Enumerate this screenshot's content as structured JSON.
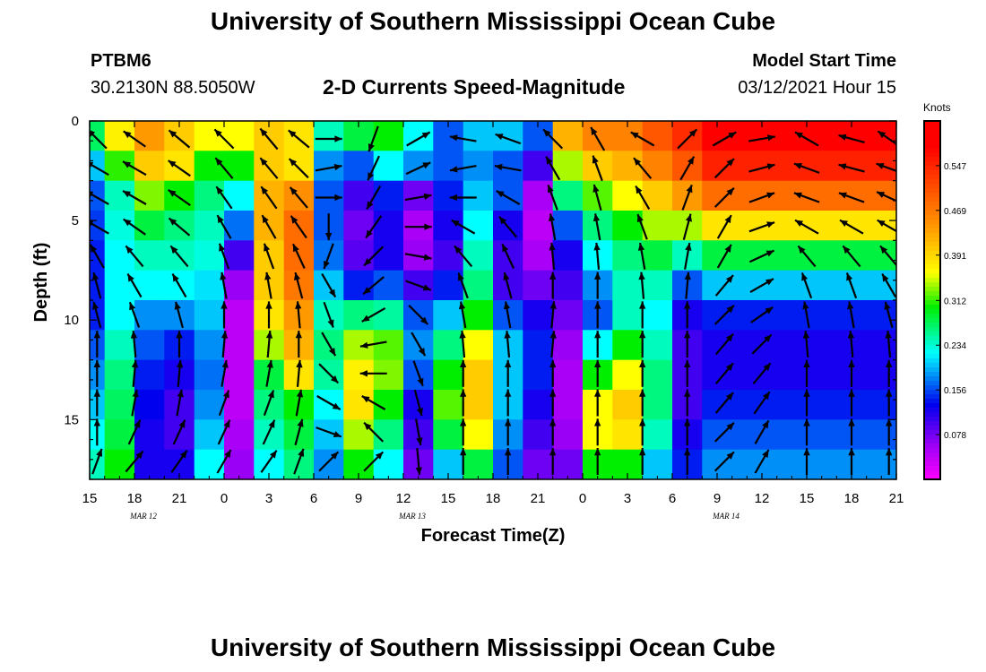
{
  "page": {
    "title_top": "University of Southern Mississippi Ocean Cube",
    "title_bottom": "University of Southern Mississippi Ocean Cube",
    "station_id": "PTBM6",
    "coordinates": "30.2130N 88.5050W",
    "model_start_label": "Model Start Time",
    "model_start_value": "03/12/2021 Hour 15"
  },
  "colors": {
    "magenta": "#ff00ff",
    "purple": "#9a00f5",
    "blue": "#0000ee",
    "cyan": "#00ffff",
    "green": "#00ee00",
    "yellow": "#ffff00",
    "orange": "#ff9900",
    "red": "#ff0000",
    "arrow": "#000000"
  },
  "chart_data": {
    "type": "heatmap",
    "title": "2-D Currents Speed-Magnitude",
    "xlabel": "Forecast Time(Z)",
    "ylabel": "Depth (ft)",
    "x_tick_labels": [
      "15",
      "18",
      "21",
      "0",
      "3",
      "6",
      "9",
      "12",
      "15",
      "18",
      "21",
      "0",
      "3",
      "6",
      "9",
      "12",
      "15",
      "18",
      "21"
    ],
    "date_labels": [
      {
        "text": "MAR 12",
        "tick_index": 1
      },
      {
        "text": "MAR 13",
        "tick_index": 7
      },
      {
        "text": "MAR 14",
        "tick_index": 14
      }
    ],
    "y_ticks": [
      0,
      5,
      10,
      15
    ],
    "ylim": [
      0,
      18
    ],
    "x_range_hours": [
      0,
      54
    ],
    "colorbar": {
      "unit": "Knots",
      "ticks": [
        "0.547",
        "0.469",
        "0.391",
        "0.312",
        "0.234",
        "0.156",
        "0.078"
      ],
      "range": [
        0,
        0.625
      ]
    },
    "speed_profiles": [
      {
        "hour": 0,
        "speeds": [
          0.27,
          0.2,
          0.16,
          0.15,
          0.14,
          0.14,
          0.14,
          0.16,
          0.18,
          0.2,
          0.22,
          0.24
        ]
      },
      {
        "hour": 2,
        "speeds": [
          0.37,
          0.31,
          0.24,
          0.23,
          0.22,
          0.22,
          0.22,
          0.24,
          0.26,
          0.27,
          0.28,
          0.3
        ]
      },
      {
        "hour": 4,
        "speeds": [
          0.44,
          0.4,
          0.33,
          0.28,
          0.24,
          0.22,
          0.18,
          0.16,
          0.14,
          0.13,
          0.12,
          0.12
        ]
      },
      {
        "hour": 6,
        "speeds": [
          0.4,
          0.38,
          0.3,
          0.26,
          0.24,
          0.22,
          0.18,
          0.14,
          0.12,
          0.1,
          0.1,
          0.12
        ]
      },
      {
        "hour": 8,
        "speeds": [
          0.36,
          0.3,
          0.26,
          0.24,
          0.23,
          0.21,
          0.2,
          0.18,
          0.17,
          0.18,
          0.2,
          0.22
        ]
      },
      {
        "hour": 10,
        "speeds": [
          0.36,
          0.3,
          0.22,
          0.17,
          0.1,
          0.06,
          0.04,
          0.04,
          0.04,
          0.04,
          0.05,
          0.06
        ]
      },
      {
        "hour": 12,
        "speeds": [
          0.4,
          0.4,
          0.42,
          0.42,
          0.4,
          0.4,
          0.38,
          0.34,
          0.28,
          0.26,
          0.24,
          0.22
        ]
      },
      {
        "hour": 14,
        "speeds": [
          0.38,
          0.38,
          0.45,
          0.48,
          0.48,
          0.47,
          0.44,
          0.42,
          0.38,
          0.3,
          0.28,
          0.26
        ]
      },
      {
        "hour": 16,
        "speeds": [
          0.24,
          0.18,
          0.16,
          0.16,
          0.17,
          0.2,
          0.24,
          0.26,
          0.25,
          0.22,
          0.2,
          0.18
        ]
      },
      {
        "hour": 18,
        "speeds": [
          0.28,
          0.16,
          0.1,
          0.08,
          0.09,
          0.14,
          0.26,
          0.34,
          0.37,
          0.38,
          0.34,
          0.3
        ]
      },
      {
        "hour": 20,
        "speeds": [
          0.3,
          0.22,
          0.14,
          0.12,
          0.12,
          0.16,
          0.25,
          0.32,
          0.33,
          0.3,
          0.26,
          0.22
        ]
      },
      {
        "hour": 22,
        "speeds": [
          0.22,
          0.18,
          0.08,
          0.05,
          0.06,
          0.1,
          0.16,
          0.18,
          0.16,
          0.12,
          0.1,
          0.08
        ]
      },
      {
        "hour": 24,
        "speeds": [
          0.16,
          0.16,
          0.14,
          0.12,
          0.1,
          0.14,
          0.2,
          0.26,
          0.3,
          0.32,
          0.28,
          0.2
        ]
      },
      {
        "hour": 26,
        "speeds": [
          0.2,
          0.18,
          0.2,
          0.22,
          0.24,
          0.26,
          0.3,
          0.36,
          0.4,
          0.4,
          0.36,
          0.28
        ]
      },
      {
        "hour": 28,
        "speeds": [
          0.2,
          0.16,
          0.16,
          0.12,
          0.1,
          0.1,
          0.16,
          0.2,
          0.2,
          0.2,
          0.18,
          0.16
        ]
      },
      {
        "hour": 30,
        "speeds": [
          0.16,
          0.1,
          0.05,
          0.04,
          0.05,
          0.08,
          0.12,
          0.14,
          0.14,
          0.12,
          0.1,
          0.08
        ]
      },
      {
        "hour": 32,
        "speeds": [
          0.42,
          0.34,
          0.26,
          0.16,
          0.12,
          0.1,
          0.08,
          0.06,
          0.05,
          0.05,
          0.06,
          0.08
        ]
      },
      {
        "hour": 34,
        "speeds": [
          0.46,
          0.4,
          0.32,
          0.26,
          0.22,
          0.18,
          0.16,
          0.22,
          0.3,
          0.36,
          0.36,
          0.3
        ]
      },
      {
        "hour": 36,
        "speeds": [
          0.46,
          0.42,
          0.36,
          0.3,
          0.26,
          0.24,
          0.24,
          0.3,
          0.36,
          0.4,
          0.38,
          0.3
        ]
      },
      {
        "hour": 38,
        "speeds": [
          0.5,
          0.46,
          0.4,
          0.34,
          0.28,
          0.24,
          0.22,
          0.24,
          0.26,
          0.26,
          0.24,
          0.2
        ]
      },
      {
        "hour": 40,
        "speeds": [
          0.54,
          0.5,
          0.44,
          0.34,
          0.24,
          0.16,
          0.12,
          0.1,
          0.1,
          0.1,
          0.12,
          0.14
        ]
      },
      {
        "hour": 42,
        "speeds": [
          0.58,
          0.55,
          0.48,
          0.38,
          0.28,
          0.2,
          0.14,
          0.12,
          0.12,
          0.14,
          0.16,
          0.18
        ]
      }
    ],
    "arrow_profiles": [
      {
        "hour": 0.5,
        "dirs": [
          315,
          300,
          300,
          300,
          330,
          345,
          345,
          0,
          0,
          0,
          0,
          20
        ]
      },
      {
        "hour": 3,
        "dirs": [
          305,
          300,
          300,
          305,
          320,
          330,
          340,
          355,
          5,
          10,
          25,
          40
        ]
      },
      {
        "hour": 6,
        "dirs": [
          310,
          305,
          305,
          310,
          320,
          330,
          345,
          0,
          5,
          10,
          25,
          35
        ]
      },
      {
        "hour": 9,
        "dirs": [
          315,
          320,
          325,
          330,
          340,
          350,
          0,
          5,
          10,
          20,
          25,
          30
        ]
      },
      {
        "hour": 12,
        "dirs": [
          320,
          320,
          325,
          330,
          340,
          350,
          0,
          5,
          10,
          20,
          25,
          35
        ]
      },
      {
        "hour": 14,
        "dirs": [
          310,
          315,
          320,
          325,
          335,
          345,
          355,
          0,
          5,
          10,
          15,
          20
        ]
      },
      {
        "hour": 16,
        "dirs": [
          90,
          80,
          90,
          180,
          200,
          150,
          160,
          150,
          135,
          120,
          110,
          45
        ]
      },
      {
        "hour": 19,
        "dirs": [
          200,
          205,
          210,
          215,
          225,
          230,
          240,
          260,
          270,
          300,
          315,
          45
        ]
      },
      {
        "hour": 22,
        "dirs": [
          60,
          65,
          80,
          90,
          100,
          110,
          135,
          150,
          160,
          165,
          170,
          175
        ]
      },
      {
        "hour": 25,
        "dirs": [
          280,
          260,
          270,
          300,
          320,
          340,
          350,
          355,
          0,
          0,
          0,
          0
        ]
      },
      {
        "hour": 28,
        "dirs": [
          290,
          280,
          300,
          320,
          335,
          345,
          350,
          355,
          0,
          0,
          0,
          0
        ]
      },
      {
        "hour": 31,
        "dirs": [
          315,
          330,
          340,
          350,
          355,
          0,
          5,
          5,
          0,
          0,
          0,
          0
        ]
      },
      {
        "hour": 34,
        "dirs": [
          330,
          340,
          345,
          350,
          355,
          0,
          0,
          0,
          0,
          0,
          0,
          0
        ]
      },
      {
        "hour": 37,
        "dirs": [
          300,
          320,
          330,
          340,
          350,
          355,
          0,
          0,
          0,
          0,
          0,
          0
        ]
      },
      {
        "hour": 40,
        "dirs": [
          45,
          30,
          20,
          15,
          10,
          5,
          0,
          0,
          0,
          0,
          0,
          0
        ]
      },
      {
        "hour": 42.5,
        "dirs": [
          60,
          45,
          45,
          30,
          30,
          40,
          45,
          40,
          40,
          40,
          45,
          45
        ]
      },
      {
        "hour": 45,
        "dirs": [
          80,
          75,
          70,
          70,
          65,
          60,
          55,
          45,
          40,
          35,
          30,
          30
        ]
      },
      {
        "hour": 48,
        "dirs": [
          300,
          290,
          290,
          300,
          320,
          340,
          350,
          355,
          0,
          0,
          0,
          0
        ]
      },
      {
        "hour": 51,
        "dirs": [
          285,
          285,
          290,
          300,
          320,
          340,
          350,
          355,
          0,
          0,
          0,
          0
        ]
      },
      {
        "hour": 53.5,
        "dirs": [
          305,
          290,
          295,
          300,
          320,
          330,
          345,
          355,
          0,
          0,
          0,
          0
        ]
      }
    ]
  }
}
